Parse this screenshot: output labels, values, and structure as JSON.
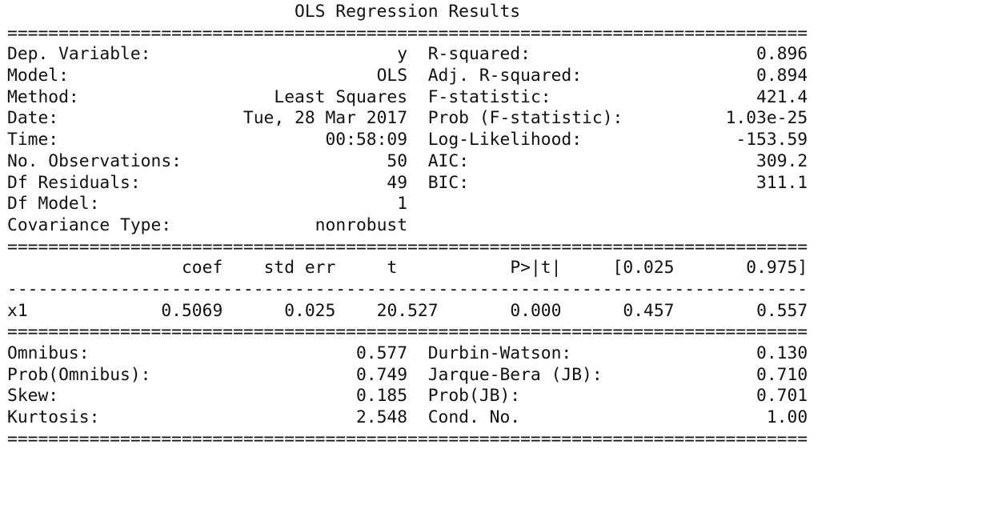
{
  "title": "OLS Regression Results",
  "top_left": [
    {
      "label": "Dep. Variable:",
      "value": "y"
    },
    {
      "label": "Model:",
      "value": "OLS"
    },
    {
      "label": "Method:",
      "value": "Least Squares"
    },
    {
      "label": "Date:",
      "value": "Tue, 28 Mar 2017"
    },
    {
      "label": "Time:",
      "value": "00:58:09"
    },
    {
      "label": "No. Observations:",
      "value": "50"
    },
    {
      "label": "Df Residuals:",
      "value": "49"
    },
    {
      "label": "Df Model:",
      "value": "1"
    },
    {
      "label": "Covariance Type:",
      "value": "nonrobust"
    }
  ],
  "top_right": [
    {
      "label": "R-squared:",
      "value": "0.896"
    },
    {
      "label": "Adj. R-squared:",
      "value": "0.894"
    },
    {
      "label": "F-statistic:",
      "value": "421.4"
    },
    {
      "label": "Prob (F-statistic):",
      "value": "1.03e-25"
    },
    {
      "label": "Log-Likelihood:",
      "value": "-153.59"
    },
    {
      "label": "AIC:",
      "value": "309.2"
    },
    {
      "label": "BIC:",
      "value": "311.1"
    }
  ],
  "coef_table": {
    "headers": [
      "coef",
      "std err",
      "t",
      "P>|t|",
      "[0.025",
      "0.975]"
    ],
    "rows": [
      {
        "name": "x1",
        "values": [
          "0.5069",
          "0.025",
          "20.527",
          "0.000",
          "0.457",
          "0.557"
        ]
      }
    ]
  },
  "bottom_left": [
    {
      "label": "Omnibus:",
      "value": "0.577"
    },
    {
      "label": "Prob(Omnibus):",
      "value": "0.749"
    },
    {
      "label": "Skew:",
      "value": "0.185"
    },
    {
      "label": "Kurtosis:",
      "value": "2.548"
    }
  ],
  "bottom_right": [
    {
      "label": "Durbin-Watson:",
      "value": "0.130"
    },
    {
      "label": "Jarque-Bera (JB):",
      "value": "0.710"
    },
    {
      "label": "Prob(JB):",
      "value": "0.701"
    },
    {
      "label": "Cond. No.",
      "value": "1.00"
    }
  ]
}
